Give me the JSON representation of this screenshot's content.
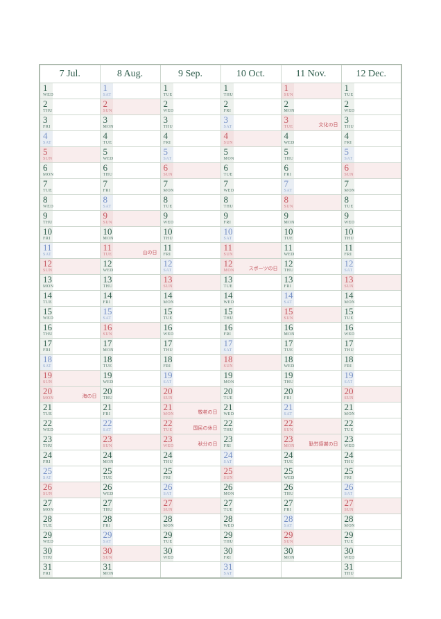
{
  "rows": 31,
  "colors": {
    "weekday_text": "#33604f",
    "weekday_sub_text": "#4e7466",
    "header_text": "#2e5c4b",
    "saturday_text": "#7590c5",
    "saturday_sub_text": "#8ea6cc",
    "sunday_holiday_text": "#c4565f",
    "sunday_sub_text": "#cd7e85",
    "weekday_strip": "#edf1ed",
    "saturday_strip": "#e9eef4",
    "sunday_strip": "#f3e1e1",
    "sunday_holiday_bg": "#f9eded",
    "grid_border": "#ccd6cd",
    "outer_border": "#aebbaf"
  },
  "months": [
    {
      "label": "7 Jul.",
      "days": [
        {
          "d": 1,
          "w": "WED"
        },
        {
          "d": 2,
          "w": "THU"
        },
        {
          "d": 3,
          "w": "FRI"
        },
        {
          "d": 4,
          "w": "SAT"
        },
        {
          "d": 5,
          "w": "SUN"
        },
        {
          "d": 6,
          "w": "MON"
        },
        {
          "d": 7,
          "w": "TUE"
        },
        {
          "d": 8,
          "w": "WED"
        },
        {
          "d": 9,
          "w": "THU"
        },
        {
          "d": 10,
          "w": "FRI"
        },
        {
          "d": 11,
          "w": "SAT"
        },
        {
          "d": 12,
          "w": "SUN"
        },
        {
          "d": 13,
          "w": "MON"
        },
        {
          "d": 14,
          "w": "TUE"
        },
        {
          "d": 15,
          "w": "WED"
        },
        {
          "d": 16,
          "w": "THU"
        },
        {
          "d": 17,
          "w": "FRI"
        },
        {
          "d": 18,
          "w": "SAT"
        },
        {
          "d": 19,
          "w": "SUN"
        },
        {
          "d": 20,
          "w": "MON",
          "h": "海の日"
        },
        {
          "d": 21,
          "w": "TUE"
        },
        {
          "d": 22,
          "w": "WED"
        },
        {
          "d": 23,
          "w": "THU"
        },
        {
          "d": 24,
          "w": "FRI"
        },
        {
          "d": 25,
          "w": "SAT"
        },
        {
          "d": 26,
          "w": "SUN"
        },
        {
          "d": 27,
          "w": "MON"
        },
        {
          "d": 28,
          "w": "TUE"
        },
        {
          "d": 29,
          "w": "WED"
        },
        {
          "d": 30,
          "w": "THU"
        },
        {
          "d": 31,
          "w": "FRI"
        }
      ]
    },
    {
      "label": "8 Aug.",
      "days": [
        {
          "d": 1,
          "w": "SAT"
        },
        {
          "d": 2,
          "w": "SUN"
        },
        {
          "d": 3,
          "w": "MON"
        },
        {
          "d": 4,
          "w": "TUE"
        },
        {
          "d": 5,
          "w": "WED"
        },
        {
          "d": 6,
          "w": "THU"
        },
        {
          "d": 7,
          "w": "FRI"
        },
        {
          "d": 8,
          "w": "SAT"
        },
        {
          "d": 9,
          "w": "SUN"
        },
        {
          "d": 10,
          "w": "MON"
        },
        {
          "d": 11,
          "w": "TUE",
          "h": "山の日"
        },
        {
          "d": 12,
          "w": "WED"
        },
        {
          "d": 13,
          "w": "THU"
        },
        {
          "d": 14,
          "w": "FRI"
        },
        {
          "d": 15,
          "w": "SAT"
        },
        {
          "d": 16,
          "w": "SUN"
        },
        {
          "d": 17,
          "w": "MON"
        },
        {
          "d": 18,
          "w": "TUE"
        },
        {
          "d": 19,
          "w": "WED"
        },
        {
          "d": 20,
          "w": "THU"
        },
        {
          "d": 21,
          "w": "FRI"
        },
        {
          "d": 22,
          "w": "SAT"
        },
        {
          "d": 23,
          "w": "SUN"
        },
        {
          "d": 24,
          "w": "MON"
        },
        {
          "d": 25,
          "w": "TUE"
        },
        {
          "d": 26,
          "w": "WED"
        },
        {
          "d": 27,
          "w": "THU"
        },
        {
          "d": 28,
          "w": "FRI"
        },
        {
          "d": 29,
          "w": "SAT"
        },
        {
          "d": 30,
          "w": "SUN"
        },
        {
          "d": 31,
          "w": "MON"
        }
      ]
    },
    {
      "label": "9 Sep.",
      "days": [
        {
          "d": 1,
          "w": "TUE"
        },
        {
          "d": 2,
          "w": "WED"
        },
        {
          "d": 3,
          "w": "THU"
        },
        {
          "d": 4,
          "w": "FRI"
        },
        {
          "d": 5,
          "w": "SAT"
        },
        {
          "d": 6,
          "w": "SUN"
        },
        {
          "d": 7,
          "w": "MON"
        },
        {
          "d": 8,
          "w": "TUE"
        },
        {
          "d": 9,
          "w": "WED"
        },
        {
          "d": 10,
          "w": "THU"
        },
        {
          "d": 11,
          "w": "FRI"
        },
        {
          "d": 12,
          "w": "SAT"
        },
        {
          "d": 13,
          "w": "SUN"
        },
        {
          "d": 14,
          "w": "MON"
        },
        {
          "d": 15,
          "w": "TUE"
        },
        {
          "d": 16,
          "w": "WED"
        },
        {
          "d": 17,
          "w": "THU"
        },
        {
          "d": 18,
          "w": "FRI"
        },
        {
          "d": 19,
          "w": "SAT"
        },
        {
          "d": 20,
          "w": "SUN"
        },
        {
          "d": 21,
          "w": "MON",
          "h": "敬老の日"
        },
        {
          "d": 22,
          "w": "TUE",
          "h": "国民の休日"
        },
        {
          "d": 23,
          "w": "WED",
          "h": "秋分の日"
        },
        {
          "d": 24,
          "w": "THU"
        },
        {
          "d": 25,
          "w": "FRI"
        },
        {
          "d": 26,
          "w": "SAT"
        },
        {
          "d": 27,
          "w": "SUN"
        },
        {
          "d": 28,
          "w": "MON"
        },
        {
          "d": 29,
          "w": "TUE"
        },
        {
          "d": 30,
          "w": "WED"
        }
      ]
    },
    {
      "label": "10 Oct.",
      "days": [
        {
          "d": 1,
          "w": "THU"
        },
        {
          "d": 2,
          "w": "FRI"
        },
        {
          "d": 3,
          "w": "SAT"
        },
        {
          "d": 4,
          "w": "SUN"
        },
        {
          "d": 5,
          "w": "MON"
        },
        {
          "d": 6,
          "w": "TUE"
        },
        {
          "d": 7,
          "w": "WED"
        },
        {
          "d": 8,
          "w": "THU"
        },
        {
          "d": 9,
          "w": "FRI"
        },
        {
          "d": 10,
          "w": "SAT"
        },
        {
          "d": 11,
          "w": "SUN"
        },
        {
          "d": 12,
          "w": "MON",
          "h": "スポーツの日"
        },
        {
          "d": 13,
          "w": "TUE"
        },
        {
          "d": 14,
          "w": "WED"
        },
        {
          "d": 15,
          "w": "THU"
        },
        {
          "d": 16,
          "w": "FRI"
        },
        {
          "d": 17,
          "w": "SAT"
        },
        {
          "d": 18,
          "w": "SUN"
        },
        {
          "d": 19,
          "w": "MON"
        },
        {
          "d": 20,
          "w": "TUE"
        },
        {
          "d": 21,
          "w": "WED"
        },
        {
          "d": 22,
          "w": "THU"
        },
        {
          "d": 23,
          "w": "FRI"
        },
        {
          "d": 24,
          "w": "SAT"
        },
        {
          "d": 25,
          "w": "SUN"
        },
        {
          "d": 26,
          "w": "MON"
        },
        {
          "d": 27,
          "w": "TUE"
        },
        {
          "d": 28,
          "w": "WED"
        },
        {
          "d": 29,
          "w": "THU"
        },
        {
          "d": 30,
          "w": "FRI"
        },
        {
          "d": 31,
          "w": "SAT"
        }
      ]
    },
    {
      "label": "11 Nov.",
      "days": [
        {
          "d": 1,
          "w": "SUN"
        },
        {
          "d": 2,
          "w": "MON"
        },
        {
          "d": 3,
          "w": "TUE",
          "h": "文化の日"
        },
        {
          "d": 4,
          "w": "WED"
        },
        {
          "d": 5,
          "w": "THU"
        },
        {
          "d": 6,
          "w": "FRI"
        },
        {
          "d": 7,
          "w": "SAT"
        },
        {
          "d": 8,
          "w": "SUN"
        },
        {
          "d": 9,
          "w": "MON"
        },
        {
          "d": 10,
          "w": "TUE"
        },
        {
          "d": 11,
          "w": "WED"
        },
        {
          "d": 12,
          "w": "THU"
        },
        {
          "d": 13,
          "w": "FRI"
        },
        {
          "d": 14,
          "w": "SAT"
        },
        {
          "d": 15,
          "w": "SUN"
        },
        {
          "d": 16,
          "w": "MON"
        },
        {
          "d": 17,
          "w": "TUE"
        },
        {
          "d": 18,
          "w": "WED"
        },
        {
          "d": 19,
          "w": "THU"
        },
        {
          "d": 20,
          "w": "FRI"
        },
        {
          "d": 21,
          "w": "SAT"
        },
        {
          "d": 22,
          "w": "SUN"
        },
        {
          "d": 23,
          "w": "MON",
          "h": "勤労感謝の日"
        },
        {
          "d": 24,
          "w": "TUE"
        },
        {
          "d": 25,
          "w": "WED"
        },
        {
          "d": 26,
          "w": "THU"
        },
        {
          "d": 27,
          "w": "FRI"
        },
        {
          "d": 28,
          "w": "SAT"
        },
        {
          "d": 29,
          "w": "SUN"
        },
        {
          "d": 30,
          "w": "MON"
        }
      ]
    },
    {
      "label": "12 Dec.",
      "days": [
        {
          "d": 1,
          "w": "TUE"
        },
        {
          "d": 2,
          "w": "WED"
        },
        {
          "d": 3,
          "w": "THU"
        },
        {
          "d": 4,
          "w": "FRI"
        },
        {
          "d": 5,
          "w": "SAT"
        },
        {
          "d": 6,
          "w": "SUN"
        },
        {
          "d": 7,
          "w": "MON"
        },
        {
          "d": 8,
          "w": "TUE"
        },
        {
          "d": 9,
          "w": "WED"
        },
        {
          "d": 10,
          "w": "THU"
        },
        {
          "d": 11,
          "w": "FRI"
        },
        {
          "d": 12,
          "w": "SAT"
        },
        {
          "d": 13,
          "w": "SUN"
        },
        {
          "d": 14,
          "w": "MON"
        },
        {
          "d": 15,
          "w": "TUE"
        },
        {
          "d": 16,
          "w": "WED"
        },
        {
          "d": 17,
          "w": "THU"
        },
        {
          "d": 18,
          "w": "FRI"
        },
        {
          "d": 19,
          "w": "SAT"
        },
        {
          "d": 20,
          "w": "SUN"
        },
        {
          "d": 21,
          "w": "MON"
        },
        {
          "d": 22,
          "w": "TUE"
        },
        {
          "d": 23,
          "w": "WED"
        },
        {
          "d": 24,
          "w": "THU"
        },
        {
          "d": 25,
          "w": "FRI"
        },
        {
          "d": 26,
          "w": "SAT"
        },
        {
          "d": 27,
          "w": "SUN"
        },
        {
          "d": 28,
          "w": "MON"
        },
        {
          "d": 29,
          "w": "TUE"
        },
        {
          "d": 30,
          "w": "WED"
        },
        {
          "d": 31,
          "w": "THU"
        }
      ]
    }
  ]
}
